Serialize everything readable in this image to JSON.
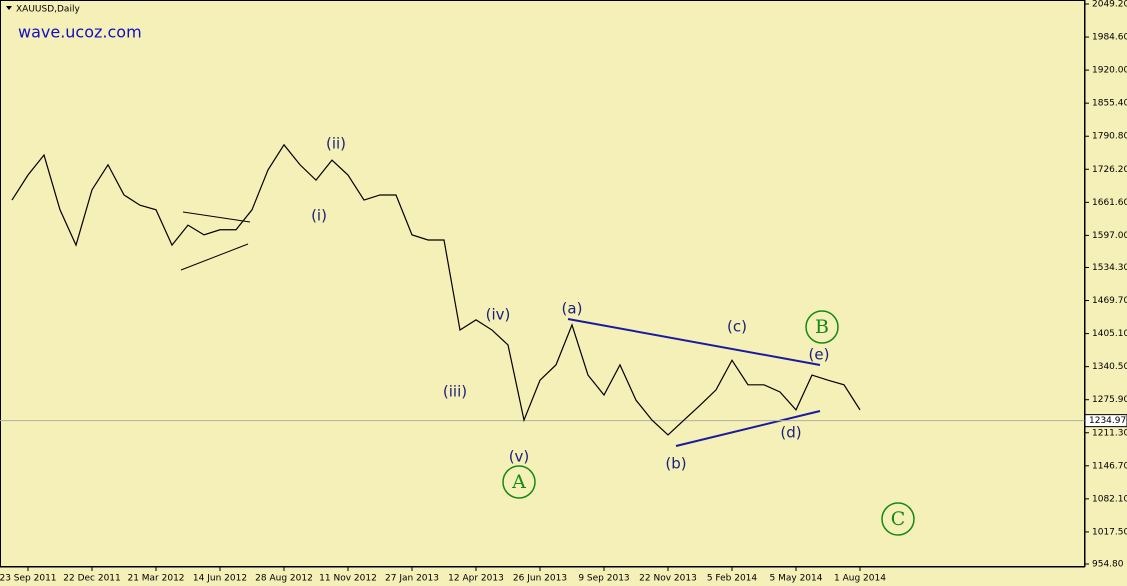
{
  "chart_data": {
    "type": "line",
    "title": "XAUUSD,Daily",
    "watermark": "wave.ucoz.com",
    "categories": [
      null,
      "23 Sep 2011",
      null,
      null,
      null,
      "22 Dec 2011",
      null,
      null,
      null,
      "21 Mar 2012",
      null,
      null,
      null,
      "14 Jun 2012",
      null,
      null,
      null,
      "28 Aug 2012",
      null,
      null,
      null,
      "11 Nov 2012",
      null,
      null,
      null,
      "27 Jan 2013",
      null,
      null,
      null,
      "12 Apr 2013",
      null,
      null,
      null,
      "26 Jun 2013",
      null,
      null,
      null,
      "9 Sep 2013",
      null,
      null,
      null,
      "22 Nov 2013",
      null,
      null,
      null,
      "5 Feb 2014",
      null,
      null,
      null,
      "5 May 2014",
      null,
      null,
      null,
      "1 Aug 2014"
    ],
    "series": [
      {
        "name": "XAUUSD",
        "color": "#000000",
        "values": [
          1666,
          1715,
          1754,
          1647,
          1578,
          1686,
          1735,
          1676,
          1656,
          1647,
          1578,
          1617,
          1598,
          1608,
          1608,
          1647,
          1725,
          1774,
          1735,
          1705,
          1744,
          1715,
          1666,
          1676,
          1676,
          1598,
          1588,
          1588,
          1412,
          1432,
          1412,
          1383,
          1236,
          1314,
          1344,
          1422,
          1324,
          1285,
          1344,
          1275,
          1236,
          1207,
          1236,
          1265,
          1295,
          1353,
          1305,
          1305,
          1291,
          1256,
          1324,
          1314,
          1305,
          1256
        ]
      }
    ],
    "last_price": {
      "value": 1234.97,
      "label": "1234.97"
    },
    "ylim": [
      954.8,
      2049.2
    ],
    "yticks": [
      {
        "value": 2049.2,
        "label": "2049.20"
      },
      {
        "value": 1984.6,
        "label": "1984.60"
      },
      {
        "value": 1920,
        "label": "1920.00"
      },
      {
        "value": 1855.4,
        "label": "1855.40"
      },
      {
        "value": 1790.8,
        "label": "1790.80"
      },
      {
        "value": 1726.2,
        "label": "1726.20"
      },
      {
        "value": 1661.6,
        "label": "1661.60"
      },
      {
        "value": 1597,
        "label": "1597.00"
      },
      {
        "value": 1534.3,
        "label": "1534.30"
      },
      {
        "value": 1469.7,
        "label": "1469.70"
      },
      {
        "value": 1405.1,
        "label": "1405.10"
      },
      {
        "value": 1340.5,
        "label": "1340.50"
      },
      {
        "value": 1275.9,
        "label": "1275.90"
      },
      {
        "value": 1211.3,
        "label": "1211.30"
      },
      {
        "value": 1146.7,
        "label": "1146.70"
      },
      {
        "value": 1082.1,
        "label": "1082.10"
      },
      {
        "value": 1017.5,
        "label": "1017.50"
      },
      {
        "value": 954.8,
        "label": "954.80"
      }
    ],
    "annotations": [
      "(i)",
      "(ii)",
      "(iii)",
      "(iv)",
      "(v)",
      "A",
      "(a)",
      "(b)",
      "(c)",
      "(d)",
      "(e)",
      "B",
      "C"
    ]
  }
}
